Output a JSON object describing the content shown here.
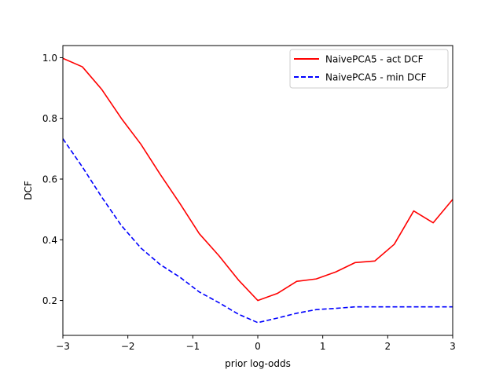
{
  "chart_data": {
    "type": "line",
    "title": "",
    "xlabel": "prior log-odds",
    "ylabel": "DCF",
    "xlim": [
      -3,
      3
    ],
    "ylim": [
      0.085,
      1.04
    ],
    "grid": false,
    "legend_position": "top-right",
    "x_ticks": [
      -3,
      -2,
      -1,
      0,
      1,
      2,
      3
    ],
    "x_tick_labels": [
      "−3",
      "−2",
      "−1",
      "0",
      "1",
      "2",
      "3"
    ],
    "y_ticks": [
      0.2,
      0.4,
      0.6,
      0.8,
      1.0
    ],
    "y_tick_labels": [
      "0.2",
      "0.4",
      "0.6",
      "0.8",
      "1.0"
    ],
    "x": [
      -3,
      -2.7,
      -2.4,
      -2.1,
      -1.8,
      -1.5,
      -1.2,
      -0.9,
      -0.6,
      -0.3,
      0,
      0.3,
      0.6,
      0.9,
      1.2,
      1.5,
      1.8,
      2.1,
      2.4,
      2.7,
      3
    ],
    "series": [
      {
        "name": "NaivePCA5 - act DCF",
        "color": "#ff0000",
        "dash": "solid",
        "values": [
          0.998,
          0.97,
          0.895,
          0.8,
          0.715,
          0.615,
          0.52,
          0.42,
          0.348,
          0.268,
          0.2,
          0.223,
          0.263,
          0.271,
          0.294,
          0.325,
          0.33,
          0.385,
          0.495,
          0.456,
          0.533
        ]
      },
      {
        "name": "NaivePCA5 - min DCF",
        "color": "#0000ff",
        "dash": "dashed",
        "values": [
          0.733,
          0.64,
          0.54,
          0.447,
          0.373,
          0.318,
          0.277,
          0.228,
          0.193,
          0.155,
          0.127,
          0.142,
          0.158,
          0.17,
          0.174,
          0.179,
          0.179,
          0.179,
          0.179,
          0.179,
          0.179
        ]
      }
    ]
  }
}
